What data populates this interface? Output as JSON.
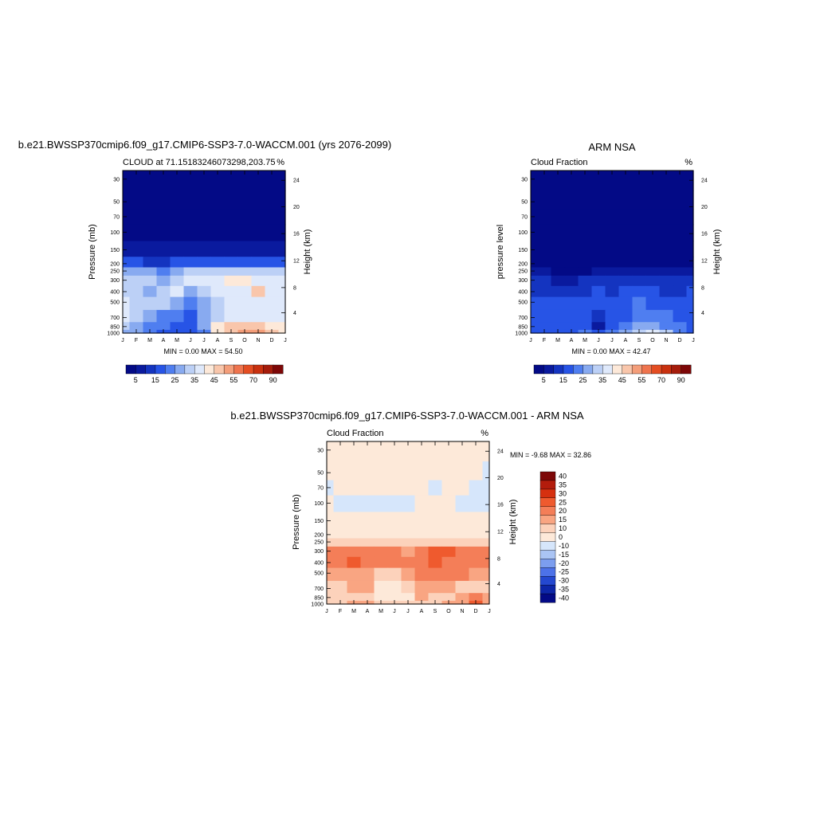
{
  "chart_data": [
    {
      "type": "heatmap",
      "title": "b.e21.BWSSP370cmip6.f09_g17.CMIP6-SSP3-7.0-WACCM.001 (yrs 2076-2099)",
      "subtitle_left": "CLOUD at 71.15183246073298,203.75",
      "subtitle_right": "%",
      "xlabel": "",
      "ylabel": "Pressure (mb)",
      "ylabel_right": "Height (km)",
      "x_ticks": [
        "J",
        "F",
        "M",
        "A",
        "M",
        "J",
        "J",
        "A",
        "S",
        "O",
        "N",
        "D",
        "J"
      ],
      "y_ticks": [
        "30",
        "50",
        "70",
        "100",
        "150",
        "200",
        "250",
        "300",
        "400",
        "500",
        "700",
        "850",
        "1000"
      ],
      "y_ticks_right": [
        "24",
        "20",
        "16",
        "12",
        "8",
        "4"
      ],
      "min_max_text": "MIN =   0.00 MAX =  54.50",
      "colorbar_labels": [
        "5",
        "15",
        "25",
        "35",
        "45",
        "55",
        "70",
        "90"
      ],
      "colorbar_colors": [
        "#030a86",
        "#0a1a9e",
        "#1434c0",
        "#2754e6",
        "#4f7ef0",
        "#88aaf0",
        "#bcd0f6",
        "#dfe9fb",
        "#fde9d9",
        "#f9c6ab",
        "#f49e7a",
        "#ef744e",
        "#e44d22",
        "#c9310f",
        "#a51c0b",
        "#7d0707"
      ],
      "levels": {
        "grid_months": 13,
        "pressure_rows": [
          "30",
          "50",
          "70",
          "100",
          "150",
          "200",
          "250",
          "300",
          "400",
          "500",
          "700",
          "850",
          "1000"
        ],
        "values": [
          [
            0,
            0,
            0,
            0,
            0,
            0,
            0,
            0,
            0,
            0,
            0,
            0,
            0
          ],
          [
            0,
            0,
            0,
            0,
            0,
            0,
            0,
            0,
            0,
            0,
            0,
            0,
            0
          ],
          [
            0,
            0,
            0,
            0,
            0,
            0,
            0,
            0,
            0,
            0,
            0,
            0,
            0
          ],
          [
            0,
            0,
            0,
            0,
            0,
            0,
            0,
            0,
            0,
            0,
            0,
            0,
            0
          ],
          [
            1,
            1,
            1,
            1,
            1,
            1,
            1,
            1,
            1,
            1,
            1,
            1,
            1
          ],
          [
            3,
            3,
            2,
            2,
            3,
            3,
            3,
            3,
            3,
            3,
            3,
            3,
            3
          ],
          [
            5,
            5,
            5,
            4,
            5,
            6,
            6,
            6,
            6,
            6,
            6,
            6,
            6
          ],
          [
            6,
            6,
            6,
            5,
            6,
            7,
            7,
            7,
            8,
            8,
            7,
            7,
            7
          ],
          [
            6,
            6,
            5,
            6,
            7,
            5,
            6,
            7,
            7,
            7,
            9,
            7,
            7
          ],
          [
            7,
            6,
            6,
            6,
            5,
            4,
            5,
            6,
            7,
            7,
            7,
            7,
            7
          ],
          [
            7,
            6,
            5,
            4,
            4,
            3,
            5,
            6,
            7,
            7,
            7,
            7,
            7
          ],
          [
            6,
            5,
            4,
            4,
            3,
            3,
            5,
            8,
            9,
            9,
            9,
            8,
            8
          ],
          [
            5,
            5,
            4,
            3,
            3,
            3,
            4,
            8,
            9,
            10,
            10,
            9,
            8
          ]
        ]
      }
    },
    {
      "type": "heatmap",
      "title": "ARM NSA",
      "subtitle_left": "Cloud Fraction",
      "subtitle_right": "%",
      "xlabel": "",
      "ylabel": "pressure level",
      "ylabel_right": "Height (km)",
      "x_ticks": [
        "J",
        "F",
        "M",
        "A",
        "M",
        "J",
        "J",
        "A",
        "S",
        "O",
        "N",
        "D",
        "J"
      ],
      "y_ticks": [
        "30",
        "50",
        "70",
        "100",
        "150",
        "200",
        "250",
        "300",
        "400",
        "500",
        "700",
        "850",
        "1000"
      ],
      "y_ticks_right": [
        "24",
        "20",
        "16",
        "12",
        "8",
        "4"
      ],
      "min_max_text": "MIN =   0.00 MAX =  42.47",
      "colorbar_labels": [
        "5",
        "15",
        "25",
        "35",
        "45",
        "55",
        "70",
        "90"
      ],
      "colorbar_colors": [
        "#030a86",
        "#0a1a9e",
        "#1434c0",
        "#2754e6",
        "#4f7ef0",
        "#88aaf0",
        "#bcd0f6",
        "#dfe9fb",
        "#fde9d9",
        "#f9c6ab",
        "#f49e7a",
        "#ef744e",
        "#e44d22",
        "#c9310f",
        "#a51c0b",
        "#7d0707"
      ],
      "levels": {
        "grid_months": 13,
        "pressure_rows": [
          "30",
          "50",
          "70",
          "100",
          "150",
          "200",
          "250",
          "300",
          "400",
          "500",
          "700",
          "850",
          "1000"
        ],
        "values": [
          [
            0,
            0,
            0,
            0,
            0,
            0,
            0,
            0,
            0,
            0,
            0,
            0,
            0
          ],
          [
            0,
            0,
            0,
            0,
            0,
            0,
            0,
            0,
            0,
            0,
            0,
            0,
            0
          ],
          [
            0,
            0,
            0,
            0,
            0,
            0,
            0,
            0,
            0,
            0,
            0,
            0,
            0
          ],
          [
            0,
            0,
            0,
            0,
            0,
            0,
            0,
            0,
            0,
            0,
            0,
            0,
            0
          ],
          [
            0,
            0,
            0,
            0,
            0,
            0,
            0,
            0,
            0,
            0,
            0,
            0,
            0
          ],
          [
            0,
            0,
            0,
            0,
            0,
            0,
            0,
            0,
            0,
            0,
            0,
            0,
            0
          ],
          [
            1,
            1,
            0,
            0,
            0,
            1,
            1,
            1,
            1,
            1,
            1,
            1,
            1
          ],
          [
            2,
            2,
            1,
            1,
            2,
            2,
            2,
            2,
            2,
            2,
            2,
            2,
            2
          ],
          [
            2,
            2,
            2,
            2,
            2,
            3,
            2,
            3,
            3,
            3,
            2,
            2,
            3
          ],
          [
            3,
            3,
            3,
            3,
            3,
            3,
            3,
            3,
            4,
            3,
            3,
            3,
            3
          ],
          [
            3,
            3,
            3,
            3,
            3,
            2,
            3,
            3,
            4,
            4,
            4,
            3,
            3
          ],
          [
            3,
            3,
            3,
            3,
            3,
            1,
            3,
            4,
            5,
            5,
            4,
            4,
            3
          ],
          [
            3,
            3,
            3,
            3,
            4,
            3,
            4,
            5,
            6,
            7,
            6,
            4,
            3
          ]
        ]
      }
    },
    {
      "type": "heatmap",
      "title": "b.e21.BWSSP370cmip6.f09_g17.CMIP6-SSP3-7.0-WACCM.001 - ARM NSA",
      "subtitle_left": "Cloud Fraction",
      "subtitle_right": "%",
      "xlabel": "",
      "ylabel": "Pressure (mb)",
      "ylabel_right": "Height (km)",
      "x_ticks": [
        "J",
        "F",
        "M",
        "A",
        "M",
        "J",
        "J",
        "A",
        "S",
        "O",
        "N",
        "D",
        "J"
      ],
      "y_ticks": [
        "30",
        "50",
        "70",
        "100",
        "150",
        "200",
        "250",
        "300",
        "400",
        "500",
        "700",
        "850",
        "1000"
      ],
      "y_ticks_right": [
        "24",
        "20",
        "16",
        "12",
        "8",
        "4"
      ],
      "min_max_text": "MIN =  -9.68 MAX =  32.86",
      "colorbar_labels": [
        "40",
        "35",
        "30",
        "25",
        "20",
        "15",
        "10",
        "0",
        "-10",
        "-15",
        "-20",
        "-25",
        "-30",
        "-35",
        "-40"
      ],
      "colorbar_colors": [
        "#7d0707",
        "#b31c0c",
        "#d6300f",
        "#ef5a2e",
        "#f47e58",
        "#f9a582",
        "#fcd2bb",
        "#fde9d9",
        "#d6e6fb",
        "#aac4f4",
        "#7c9eef",
        "#4d72e8",
        "#2448d0",
        "#0d26a8",
        "#030a86"
      ],
      "levels": {
        "grid_months": 13,
        "pressure_rows": [
          "30",
          "50",
          "70",
          "100",
          "150",
          "200",
          "250",
          "300",
          "400",
          "500",
          "700",
          "850",
          "1000"
        ],
        "values": [
          [
            7,
            7,
            7,
            7,
            7,
            7,
            7,
            7,
            7,
            7,
            7,
            7,
            7
          ],
          [
            7,
            7,
            7,
            7,
            7,
            7,
            7,
            7,
            7,
            7,
            7,
            7,
            8
          ],
          [
            8,
            7,
            7,
            7,
            7,
            7,
            7,
            7,
            8,
            7,
            7,
            8,
            8
          ],
          [
            7,
            8,
            8,
            8,
            8,
            8,
            8,
            7,
            7,
            7,
            8,
            8,
            8
          ],
          [
            7,
            7,
            7,
            7,
            7,
            7,
            7,
            7,
            7,
            7,
            7,
            7,
            7
          ],
          [
            7,
            7,
            7,
            7,
            7,
            7,
            7,
            7,
            7,
            7,
            7,
            7,
            7
          ],
          [
            6,
            6,
            6,
            6,
            6,
            6,
            6,
            6,
            6,
            6,
            6,
            6,
            6
          ],
          [
            4,
            4,
            4,
            4,
            4,
            4,
            5,
            4,
            3,
            3,
            4,
            4,
            4
          ],
          [
            4,
            4,
            3,
            4,
            4,
            4,
            4,
            4,
            3,
            4,
            4,
            4,
            4
          ],
          [
            5,
            5,
            5,
            5,
            6,
            6,
            5,
            4,
            4,
            4,
            4,
            5,
            5
          ],
          [
            6,
            6,
            5,
            5,
            7,
            7,
            6,
            5,
            5,
            5,
            6,
            6,
            6
          ],
          [
            6,
            6,
            6,
            6,
            7,
            7,
            7,
            5,
            6,
            6,
            5,
            4,
            5
          ],
          [
            6,
            6,
            5,
            5,
            6,
            6,
            6,
            6,
            6,
            5,
            5,
            3,
            5
          ]
        ]
      }
    }
  ]
}
